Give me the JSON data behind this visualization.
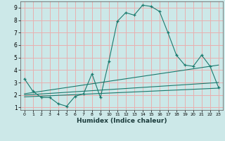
{
  "title": "",
  "xlabel": "Humidex (Indice chaleur)",
  "bg_color": "#cce8e8",
  "grid_color": "#e8b0b0",
  "line_color": "#1a7a6e",
  "xlim": [
    -0.5,
    23.5
  ],
  "ylim": [
    0.8,
    9.5
  ],
  "xticks": [
    0,
    1,
    2,
    3,
    4,
    5,
    6,
    7,
    8,
    9,
    10,
    11,
    12,
    13,
    14,
    15,
    16,
    17,
    18,
    19,
    20,
    21,
    22,
    23
  ],
  "yticks": [
    1,
    2,
    3,
    4,
    5,
    6,
    7,
    8,
    9
  ],
  "curve1_x": [
    0,
    1,
    2,
    3,
    4,
    5,
    6,
    7,
    8,
    9,
    10,
    11,
    12,
    13,
    14,
    15,
    16,
    17,
    18,
    19,
    20,
    21,
    22,
    23
  ],
  "curve1_y": [
    3.3,
    2.3,
    1.8,
    1.8,
    1.3,
    1.1,
    1.9,
    2.1,
    3.7,
    1.8,
    4.7,
    7.9,
    8.6,
    8.4,
    9.2,
    9.1,
    8.7,
    7.0,
    5.2,
    4.4,
    4.3,
    5.2,
    4.3,
    2.6
  ],
  "curve2_x": [
    0,
    23
  ],
  "curve2_y": [
    2.1,
    4.4
  ],
  "curve3_x": [
    0,
    23
  ],
  "curve3_y": [
    1.85,
    2.55
  ],
  "curve4_x": [
    0,
    23
  ],
  "curve4_y": [
    2.0,
    3.0
  ]
}
